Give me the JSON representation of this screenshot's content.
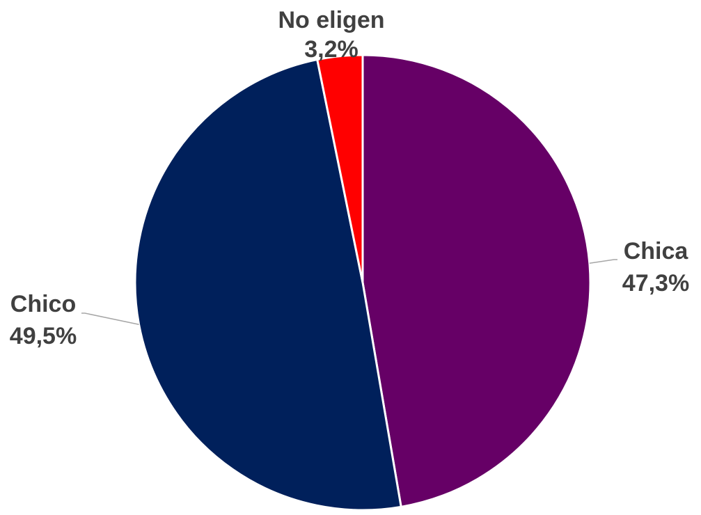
{
  "chart_data": {
    "type": "pie",
    "title": "",
    "slices": [
      {
        "label": "Chica",
        "value": 47.3,
        "display": "47,3%",
        "color": "#660066"
      },
      {
        "label": "Chico",
        "value": 49.5,
        "display": "49,5%",
        "color": "#00205B"
      },
      {
        "label": "No eligen",
        "value": 3.2,
        "display": "3,2%",
        "color": "#FF0000"
      }
    ],
    "start_angle_deg": 0,
    "direction": "clockwise",
    "slice_border_color": "#FFFFFF",
    "leader_line_color": "#A6A6A6",
    "label_color": "#404040"
  }
}
